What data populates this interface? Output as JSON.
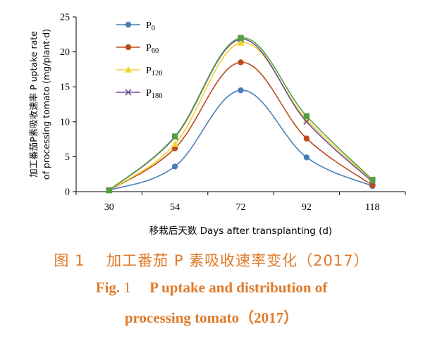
{
  "chart_data": {
    "type": "line",
    "x": [
      "30",
      "54",
      "72",
      "92",
      "118"
    ],
    "ylabel": "加工番茄P素吸收速率 P uptake rate of processing tomato（mg/plant·d）",
    "ylabel_lines": [
      "加工番茄P素吸收速率 P uptake rate",
      "of processing tomato (mg/plant·d)"
    ],
    "xlabel": "移栽后天数 Days after transplanting (d)",
    "ylim": [
      0,
      25
    ],
    "yticks": [
      "0",
      "5",
      "10",
      "15",
      "20",
      "25"
    ],
    "grid": false,
    "legend_position": "top-left",
    "series": [
      {
        "name": "P0",
        "base": "P",
        "sub": "0",
        "color": "#4a7ebb",
        "marker": "circle",
        "values": [
          0.2,
          3.6,
          14.5,
          4.9,
          0.8
        ]
      },
      {
        "name": "P60",
        "base": "P",
        "sub": "60",
        "color": "#be4b1c",
        "marker": "circle",
        "values": [
          0.2,
          6.2,
          18.5,
          7.6,
          0.9
        ]
      },
      {
        "name": "P120",
        "base": "P",
        "sub": "120",
        "color": "#f2d230",
        "marker": "triangle",
        "values": [
          0.2,
          6.8,
          21.3,
          10.3,
          1.6
        ]
      },
      {
        "name": "P180",
        "base": "P",
        "sub": "180",
        "color": "#6e4c9a",
        "marker": "x",
        "values": [
          0.2,
          7.8,
          21.8,
          10.0,
          1.4
        ]
      },
      {
        "name": "",
        "base": "",
        "sub": "",
        "color": "#56a043",
        "marker": "square",
        "values": [
          0.2,
          7.9,
          22.0,
          10.8,
          1.7
        ]
      }
    ]
  },
  "caption": {
    "cn_label": "图",
    "cn_num": "1",
    "cn_text": "加工番茄 P 素吸收速率变化（2017）",
    "en_label": "Fig.",
    "en_num": "1",
    "en_text": "P uptake and distribution of",
    "en_text2": "processing tomato（2017）"
  }
}
